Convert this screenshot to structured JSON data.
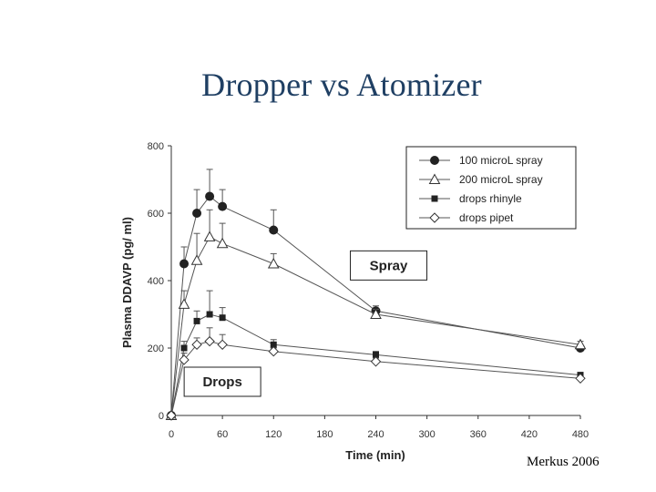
{
  "slide": {
    "title": "Dropper vs Atomizer",
    "credit": "Merkus 2006"
  },
  "chart_data": {
    "type": "line",
    "title": "",
    "xlabel": "Time (min)",
    "ylabel": "Plasma DDAVP (pg/ ml)",
    "xlim": [
      0,
      480
    ],
    "ylim": [
      0,
      800
    ],
    "xticks": [
      0,
      60,
      120,
      180,
      240,
      300,
      360,
      420,
      480
    ],
    "xtick_labels": [
      "0",
      "60",
      "120",
      "180",
      "240",
      "300",
      "360",
      "420",
      "480"
    ],
    "yticks": [
      0,
      200,
      400,
      600,
      800
    ],
    "ytick_labels": [
      "0",
      "200",
      "400",
      "600",
      "800"
    ],
    "grid": false,
    "legend_position": "top-right",
    "x": [
      0,
      15,
      30,
      45,
      60,
      120,
      240,
      480
    ],
    "series": [
      {
        "name": "100 microL spray",
        "marker": "filled-circle",
        "values": [
          0,
          450,
          600,
          650,
          620,
          550,
          310,
          200
        ],
        "errors": [
          0,
          50,
          70,
          80,
          50,
          60,
          15,
          10
        ]
      },
      {
        "name": "200 microL spray",
        "marker": "open-triangle",
        "values": [
          0,
          330,
          460,
          530,
          510,
          450,
          300,
          210
        ],
        "errors": [
          0,
          40,
          80,
          80,
          60,
          30,
          15,
          10
        ]
      },
      {
        "name": "drops rhinyle",
        "marker": "filled-square",
        "values": [
          0,
          200,
          280,
          300,
          290,
          210,
          180,
          120
        ],
        "errors": [
          0,
          20,
          30,
          70,
          30,
          15,
          10,
          5
        ]
      },
      {
        "name": "drops pipet",
        "marker": "open-diamond",
        "values": [
          0,
          165,
          210,
          220,
          210,
          190,
          160,
          110
        ],
        "errors": [
          0,
          20,
          20,
          40,
          30,
          10,
          10,
          5
        ]
      }
    ],
    "annotations": [
      {
        "text": "Spray",
        "x": 255,
        "y": 445
      },
      {
        "text": "Drops",
        "x": 60,
        "y": 100
      }
    ]
  }
}
